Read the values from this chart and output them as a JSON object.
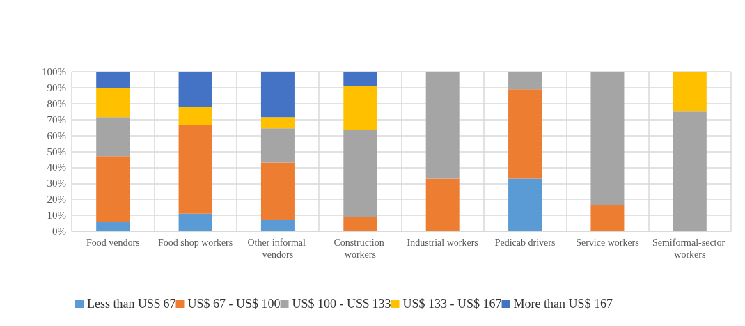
{
  "chart_data": {
    "type": "bar",
    "stacked": true,
    "categories": [
      "Food vendors",
      "Food shop workers",
      "Other informal vendors",
      "Construction workers",
      "Industrial workers",
      "Pedicab drivers",
      "Service workers",
      "Semiformal-sector workers"
    ],
    "series": [
      {
        "name": "Less than US$ 67",
        "color": "#5b9bd5",
        "values": [
          6,
          11,
          7,
          0,
          0,
          33,
          0,
          0
        ]
      },
      {
        "name": "US$ 67 - US$ 100",
        "color": "#ed7d31",
        "values": [
          41,
          55.5,
          36,
          9,
          33,
          56,
          16.5,
          0
        ]
      },
      {
        "name": "US$ 100 - US$ 133",
        "color": "#a5a5a5",
        "values": [
          24.5,
          0,
          21.5,
          54.5,
          67,
          11,
          83.5,
          75
        ]
      },
      {
        "name": "US$ 133 - US$ 167",
        "color": "#ffc000",
        "values": [
          18.5,
          11.5,
          7,
          27.5,
          0,
          0,
          0,
          25
        ]
      },
      {
        "name": "More than US$ 167",
        "color": "#4472c4",
        "values": [
          10,
          22,
          28.5,
          9,
          0,
          0,
          0,
          0
        ]
      }
    ],
    "ylim": [
      0,
      100
    ],
    "yticks": [
      {
        "value": 0,
        "label": "0%"
      },
      {
        "value": 10,
        "label": "10%"
      },
      {
        "value": 20,
        "label": "20%"
      },
      {
        "value": 30,
        "label": "30%"
      },
      {
        "value": 40,
        "label": "40%"
      },
      {
        "value": 50,
        "label": "50%"
      },
      {
        "value": 60,
        "label": "60%"
      },
      {
        "value": 70,
        "label": "70%"
      },
      {
        "value": 80,
        "label": "80%"
      },
      {
        "value": 90,
        "label": "90%"
      },
      {
        "value": 100,
        "label": "100%"
      }
    ],
    "grid": true,
    "legend": "bottom"
  }
}
